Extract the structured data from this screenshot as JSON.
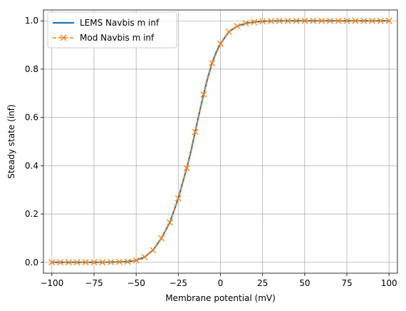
{
  "chart_data": {
    "type": "line",
    "xlabel": "Membrane potential (mV)",
    "ylabel": "Steady state (inf)",
    "xlim": [
      -105,
      105
    ],
    "ylim": [
      -0.045,
      1.045
    ],
    "xticks": [
      -100,
      -75,
      -50,
      -25,
      0,
      25,
      50,
      75,
      100
    ],
    "xtick_labels": [
      "−100",
      "−75",
      "−50",
      "−25",
      "0",
      "25",
      "50",
      "75",
      "100"
    ],
    "yticks": [
      0.0,
      0.2,
      0.4,
      0.6,
      0.8,
      1.0
    ],
    "ytick_labels": [
      "0.0",
      "0.2",
      "0.4",
      "0.6",
      "0.8",
      "1.0"
    ],
    "grid": true,
    "legend_position": "top-left",
    "series": [
      {
        "name": "LEMS Navbis m inf",
        "color": "#1f77b4",
        "style": "solid",
        "x": [
          -100,
          -95,
          -90,
          -85,
          -80,
          -75,
          -70,
          -65,
          -60,
          -55,
          -50,
          -45,
          -40,
          -35,
          -30,
          -25,
          -20,
          -17.5,
          -15,
          -12.5,
          -10,
          -7.5,
          -5,
          -2.5,
          0,
          5,
          10,
          15,
          20,
          25,
          30,
          35,
          40,
          45,
          50,
          55,
          60,
          65,
          70,
          75,
          80,
          85,
          90,
          95,
          100
        ],
        "values": [
          0.0,
          0.0,
          0.0,
          0.0,
          0.0,
          0.0,
          0.0,
          0.001,
          0.002,
          0.003,
          0.008,
          0.022,
          0.05,
          0.1,
          0.165,
          0.265,
          0.39,
          0.46,
          0.54,
          0.62,
          0.695,
          0.765,
          0.825,
          0.87,
          0.905,
          0.955,
          0.978,
          0.99,
          0.995,
          0.998,
          0.999,
          1.0,
          1.0,
          1.0,
          1.0,
          1.0,
          1.0,
          1.0,
          1.0,
          1.0,
          1.0,
          1.0,
          1.0,
          1.0,
          1.0
        ]
      },
      {
        "name": "Mod Navbis m inf",
        "color": "#ff7f0e",
        "style": "dashed",
        "marker": "x",
        "x": [
          -100,
          -95,
          -90,
          -85,
          -80,
          -75,
          -70,
          -65,
          -60,
          -55,
          -50,
          -45,
          -40,
          -35,
          -30,
          -25,
          -20,
          -15,
          -10,
          -5,
          0,
          5,
          10,
          15,
          20,
          25,
          30,
          35,
          40,
          45,
          50,
          55,
          60,
          65,
          70,
          75,
          80,
          85,
          90,
          95,
          100
        ],
        "values": [
          0.0,
          0.0,
          0.0,
          0.0,
          0.0,
          0.0,
          0.0,
          0.001,
          0.002,
          0.003,
          0.008,
          0.022,
          0.05,
          0.1,
          0.165,
          0.265,
          0.39,
          0.54,
          0.695,
          0.825,
          0.905,
          0.955,
          0.978,
          0.99,
          0.995,
          0.998,
          0.999,
          1.0,
          1.0,
          1.0,
          1.0,
          1.0,
          1.0,
          1.0,
          1.0,
          1.0,
          1.0,
          1.0,
          1.0,
          1.0,
          1.0
        ]
      }
    ]
  }
}
